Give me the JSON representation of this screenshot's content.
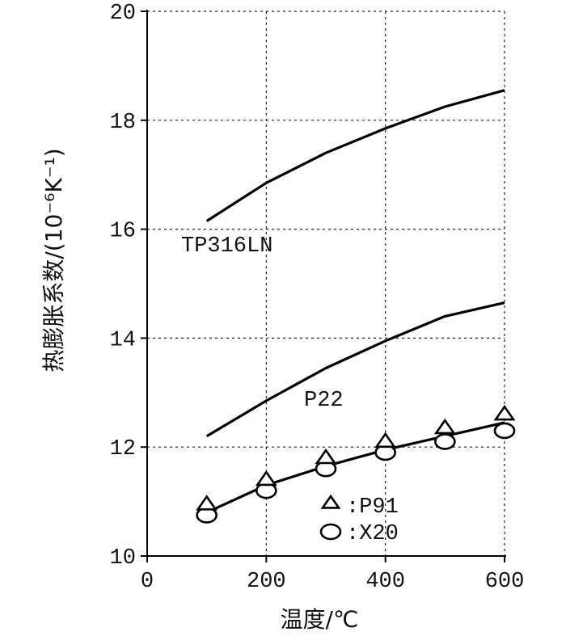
{
  "chart_data": {
    "type": "line",
    "xlabel": "温度/℃",
    "ylabel": "热膨胀系数/(10⁻⁶K⁻¹)",
    "xlim": [
      0,
      600
    ],
    "ylim": [
      10,
      20
    ],
    "xticks": [
      0,
      200,
      400,
      600
    ],
    "yticks": [
      10,
      12,
      14,
      16,
      18,
      20
    ],
    "grid": "dashed",
    "series": [
      {
        "name": "TP316LN",
        "style": "line",
        "x": [
          100,
          200,
          300,
          400,
          500,
          600
        ],
        "y": [
          16.15,
          16.85,
          17.4,
          17.85,
          18.25,
          18.55
        ]
      },
      {
        "name": "P22",
        "style": "line",
        "x": [
          100,
          200,
          300,
          400,
          500,
          600
        ],
        "y": [
          12.2,
          12.85,
          13.45,
          13.95,
          14.4,
          14.65
        ]
      },
      {
        "name": ":P91",
        "style": "triangle",
        "x": [
          100,
          200,
          300,
          400,
          500,
          600
        ],
        "y": [
          10.9,
          11.35,
          11.75,
          12.05,
          12.3,
          12.55
        ]
      },
      {
        "name": ":X20",
        "style": "circle",
        "x": [
          100,
          200,
          300,
          400,
          500,
          600
        ],
        "y": [
          10.75,
          11.2,
          11.6,
          11.9,
          12.1,
          12.3
        ]
      }
    ],
    "fit_line": {
      "x": [
        100,
        200,
        300,
        400,
        500,
        600
      ],
      "y": [
        10.8,
        11.3,
        11.65,
        11.95,
        12.2,
        12.45
      ]
    },
    "annotations": [
      "TP316LN",
      "P22"
    ],
    "legend": {
      "position": "lower-right",
      "entries": [
        {
          "marker": "triangle",
          "label": ":P91"
        },
        {
          "marker": "circle",
          "label": ":X20"
        }
      ]
    }
  }
}
